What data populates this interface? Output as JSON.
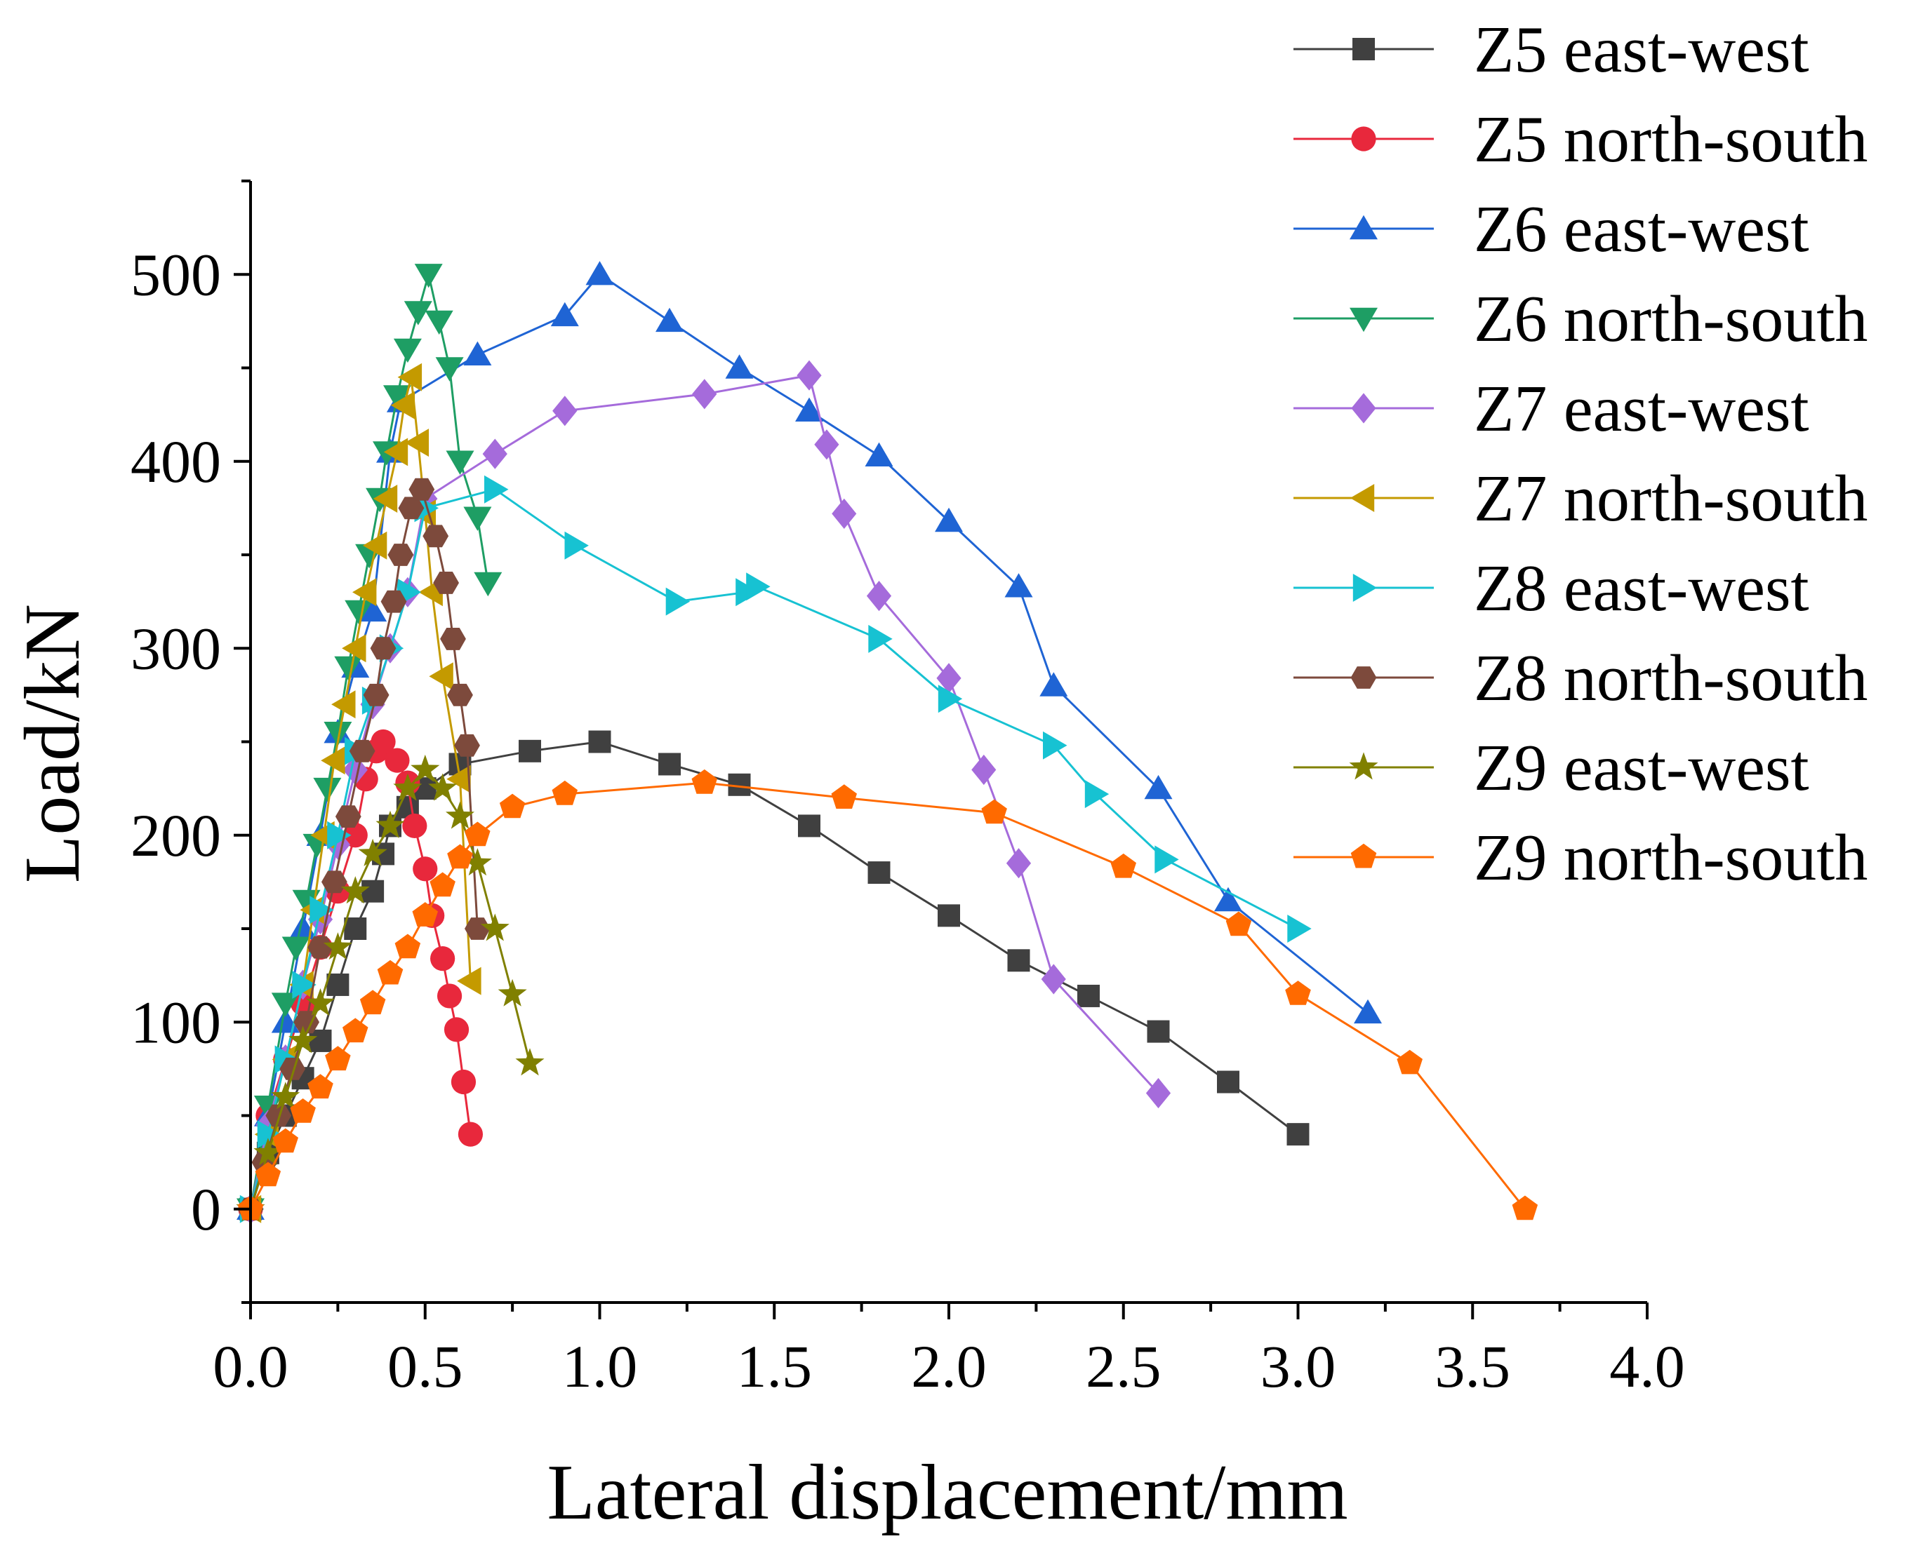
{
  "chart_data": {
    "type": "line",
    "title": "",
    "xlabel": "Lateral displacement/mm",
    "ylabel": "Load/kN",
    "xlim": [
      0,
      4
    ],
    "ylim": [
      -50,
      550
    ],
    "xticks": [
      0,
      0.5,
      1,
      1.5,
      2,
      2.5,
      3,
      3.5,
      4
    ],
    "xtick_labels": [
      "0.0",
      "0.5",
      "1.0",
      "1.5",
      "2.0",
      "2.5",
      "3.0",
      "3.5",
      "4.0"
    ],
    "yticks": [
      0,
      100,
      200,
      300,
      400,
      500
    ],
    "ytick_labels": [
      "0",
      "100",
      "200",
      "300",
      "400",
      "500"
    ],
    "grid": false,
    "legend_position": "right",
    "series": [
      {
        "name": "Z5 east-west",
        "color": "#404040",
        "marker": "square",
        "x": [
          0,
          0.05,
          0.1,
          0.15,
          0.2,
          0.25,
          0.3,
          0.35,
          0.38,
          0.4,
          0.45,
          0.5,
          0.6,
          0.8,
          1.0,
          1.2,
          1.4,
          1.6,
          1.8,
          2.0,
          2.2,
          2.4,
          2.6,
          2.8,
          3.0
        ],
        "y": [
          0,
          30,
          50,
          70,
          90,
          120,
          150,
          170,
          190,
          205,
          215,
          225,
          238,
          245,
          250,
          238,
          227,
          205,
          180,
          157,
          133,
          114,
          95,
          68,
          40
        ]
      },
      {
        "name": "Z5 north-south",
        "color": "#e8283c",
        "marker": "circle",
        "x": [
          0,
          0.05,
          0.1,
          0.15,
          0.2,
          0.25,
          0.3,
          0.33,
          0.36,
          0.38,
          0.42,
          0.45,
          0.47,
          0.5,
          0.52,
          0.55,
          0.57,
          0.59,
          0.61,
          0.63
        ],
        "y": [
          0,
          50,
          80,
          110,
          140,
          170,
          200,
          230,
          245,
          250,
          240,
          228,
          205,
          182,
          157,
          134,
          114,
          96,
          68,
          40
        ]
      },
      {
        "name": "Z6 east-west",
        "color": "#1f64d4",
        "marker": "triangle-up",
        "x": [
          0,
          0.05,
          0.1,
          0.15,
          0.2,
          0.25,
          0.3,
          0.35,
          0.4,
          0.43,
          0.65,
          0.9,
          1.0,
          1.2,
          1.4,
          1.6,
          1.8,
          2.0,
          2.2,
          2.3,
          2.6,
          2.8,
          3.2
        ],
        "y": [
          0,
          50,
          100,
          150,
          200,
          255,
          290,
          320,
          405,
          432,
          457,
          478,
          500,
          475,
          450,
          427,
          403,
          368,
          333,
          280,
          225,
          165,
          105
        ]
      },
      {
        "name": "Z6 north-south",
        "color": "#1e9e64",
        "marker": "triangle-down",
        "x": [
          0,
          0.05,
          0.1,
          0.13,
          0.16,
          0.19,
          0.22,
          0.25,
          0.28,
          0.31,
          0.34,
          0.37,
          0.39,
          0.42,
          0.45,
          0.48,
          0.51,
          0.54,
          0.57,
          0.6,
          0.65,
          0.68
        ],
        "y": [
          0,
          55,
          110,
          140,
          165,
          195,
          225,
          255,
          290,
          320,
          350,
          380,
          405,
          435,
          460,
          480,
          500,
          475,
          450,
          400,
          370,
          335
        ]
      },
      {
        "name": "Z7 east-west",
        "color": "#a56bdb",
        "marker": "diamond",
        "x": [
          0,
          0.05,
          0.1,
          0.15,
          0.2,
          0.25,
          0.3,
          0.35,
          0.4,
          0.45,
          0.5,
          0.7,
          0.9,
          1.3,
          1.6,
          1.65,
          1.7,
          1.8,
          2.0,
          2.1,
          2.2,
          2.3,
          2.6
        ],
        "y": [
          0,
          45,
          80,
          120,
          155,
          195,
          235,
          270,
          300,
          330,
          380,
          404,
          427,
          436,
          446,
          409,
          372,
          328,
          284,
          235,
          185,
          123,
          62
        ]
      },
      {
        "name": "Z7 north-south",
        "color": "#c49a00",
        "marker": "triangle-left",
        "x": [
          0,
          0.05,
          0.1,
          0.15,
          0.18,
          0.21,
          0.24,
          0.27,
          0.3,
          0.33,
          0.36,
          0.39,
          0.42,
          0.44,
          0.46,
          0.48,
          0.5,
          0.52,
          0.55,
          0.6,
          0.63
        ],
        "y": [
          0,
          40,
          80,
          120,
          160,
          200,
          240,
          270,
          300,
          330,
          355,
          380,
          405,
          430,
          445,
          410,
          372,
          330,
          285,
          230,
          122
        ]
      },
      {
        "name": "Z8 east-west",
        "color": "#17c2d2",
        "marker": "triangle-right",
        "x": [
          0,
          0.05,
          0.1,
          0.15,
          0.2,
          0.25,
          0.3,
          0.35,
          0.4,
          0.45,
          0.5,
          0.7,
          0.93,
          1.22,
          1.42,
          1.45,
          1.8,
          2.0,
          2.3,
          2.42,
          2.62,
          3.0
        ],
        "y": [
          0,
          40,
          80,
          120,
          160,
          200,
          245,
          272,
          300,
          330,
          375,
          385,
          355,
          325,
          330,
          333,
          305,
          273,
          248,
          222,
          187,
          150
        ]
      },
      {
        "name": "Z8 north-south",
        "color": "#7d4a3c",
        "marker": "hexagon",
        "x": [
          0,
          0.04,
          0.08,
          0.12,
          0.16,
          0.2,
          0.24,
          0.28,
          0.32,
          0.36,
          0.38,
          0.41,
          0.43,
          0.46,
          0.49,
          0.53,
          0.56,
          0.58,
          0.6,
          0.62,
          0.65
        ],
        "y": [
          0,
          25,
          50,
          75,
          100,
          140,
          175,
          210,
          245,
          275,
          300,
          325,
          350,
          375,
          385,
          360,
          335,
          305,
          275,
          248,
          150
        ]
      },
      {
        "name": "Z9 east-west",
        "color": "#808000",
        "marker": "star",
        "x": [
          0,
          0.05,
          0.1,
          0.15,
          0.2,
          0.25,
          0.3,
          0.35,
          0.4,
          0.45,
          0.5,
          0.55,
          0.6,
          0.65,
          0.7,
          0.75,
          0.8
        ],
        "y": [
          0,
          30,
          60,
          90,
          110,
          140,
          170,
          190,
          205,
          225,
          235,
          225,
          210,
          185,
          150,
          115,
          78
        ]
      },
      {
        "name": "Z9 north-south",
        "color": "#ff6a00",
        "marker": "pentagon",
        "x": [
          0,
          0.05,
          0.1,
          0.15,
          0.2,
          0.25,
          0.3,
          0.35,
          0.4,
          0.45,
          0.5,
          0.55,
          0.6,
          0.65,
          0.75,
          0.9,
          1.3,
          1.7,
          2.13,
          2.5,
          2.83,
          3.0,
          3.32,
          3.65
        ],
        "y": [
          0,
          18,
          36,
          52,
          65,
          80,
          95,
          110,
          126,
          140,
          157,
          173,
          188,
          200,
          215,
          222,
          228,
          220,
          212,
          183,
          152,
          115,
          78,
          0
        ]
      }
    ]
  }
}
